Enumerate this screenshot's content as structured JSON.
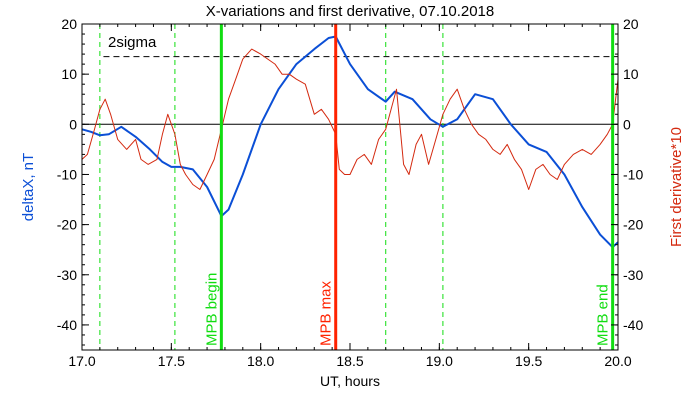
{
  "chart_data": {
    "type": "line",
    "title": "X-variations and first derivative, 07.10.2018",
    "xlabel": "UT, hours",
    "ylabel_left": "deltaX, nT",
    "ylabel_right": "First derivative*10",
    "xlim": [
      17.0,
      20.0
    ],
    "ylim": [
      -45,
      20
    ],
    "x_ticks": [
      "17.0",
      "17.5",
      "18.0",
      "18.5",
      "19.0",
      "19.5",
      "20.0"
    ],
    "y_ticks": [
      "20",
      "10",
      "0",
      "-10",
      "-20",
      "-30",
      "-40"
    ],
    "grid": false,
    "colors": {
      "deltaX": "#0b4fd6",
      "derivative": "#d42a10",
      "mpb": "#11dd11",
      "max": "#ff2200",
      "axes": "#000000"
    },
    "sigma": {
      "label": "2sigma",
      "value": 13.5
    },
    "zero_line": 0,
    "dashed_green_lines": [
      17.1,
      17.52,
      18.7,
      19.02
    ],
    "markers": [
      {
        "label": "MPB begin",
        "x": 17.78,
        "color": "#11dd11"
      },
      {
        "label": "MPB max",
        "x": 18.42,
        "color": "#ff2200"
      },
      {
        "label": "MPB end",
        "x": 19.97,
        "color": "#11dd11"
      }
    ],
    "series": [
      {
        "key": "deltaX",
        "x": [
          17.0,
          17.05,
          17.1,
          17.15,
          17.22,
          17.3,
          17.38,
          17.45,
          17.5,
          17.55,
          17.62,
          17.7,
          17.78,
          17.82,
          17.9,
          18.0,
          18.1,
          18.2,
          18.3,
          18.38,
          18.42,
          18.5,
          18.6,
          18.7,
          18.75,
          18.85,
          18.95,
          19.02,
          19.1,
          19.15,
          19.2,
          19.3,
          19.4,
          19.5,
          19.6,
          19.7,
          19.8,
          19.9,
          19.97,
          20.0
        ],
        "values": [
          -1.0,
          -1.5,
          -2.2,
          -2.0,
          -0.5,
          -2.5,
          -5.0,
          -7.5,
          -8.5,
          -8.5,
          -9.0,
          -12.5,
          -18.3,
          -17.0,
          -10.0,
          0.0,
          7.0,
          12.0,
          15.0,
          17.2,
          17.5,
          12.0,
          7.0,
          4.5,
          6.5,
          5.0,
          1.0,
          -0.5,
          1.0,
          3.5,
          6.0,
          5.0,
          0.0,
          -4.0,
          -5.5,
          -10.0,
          -16.5,
          -22.0,
          -24.5,
          -23.5
        ]
      },
      {
        "key": "derivative",
        "x": [
          17.0,
          17.03,
          17.07,
          17.1,
          17.13,
          17.16,
          17.2,
          17.25,
          17.3,
          17.33,
          17.37,
          17.42,
          17.45,
          17.48,
          17.52,
          17.55,
          17.58,
          17.62,
          17.66,
          17.7,
          17.74,
          17.78,
          17.82,
          17.86,
          17.9,
          17.95,
          18.0,
          18.04,
          18.08,
          18.12,
          18.16,
          18.2,
          18.25,
          18.3,
          18.34,
          18.38,
          18.42,
          18.44,
          18.47,
          18.5,
          18.54,
          18.58,
          18.62,
          18.66,
          18.7,
          18.73,
          18.76,
          18.8,
          18.83,
          18.87,
          18.9,
          18.94,
          18.98,
          19.02,
          19.06,
          19.1,
          19.14,
          19.18,
          19.22,
          19.26,
          19.3,
          19.34,
          19.38,
          19.42,
          19.46,
          19.5,
          19.54,
          19.58,
          19.62,
          19.66,
          19.7,
          19.75,
          19.8,
          19.85,
          19.9,
          19.94,
          19.97,
          20.0
        ],
        "values": [
          -7.0,
          -6.0,
          -1.0,
          3.0,
          5.0,
          2.0,
          -3.0,
          -5.0,
          -3.0,
          -7.0,
          -8.0,
          -7.0,
          -2.0,
          2.0,
          -2.0,
          -8.0,
          -10.0,
          -12.0,
          -13.0,
          -10.0,
          -7.0,
          -1.0,
          5.0,
          9.0,
          13.0,
          15.0,
          14.0,
          13.0,
          12.0,
          10.0,
          10.0,
          9.0,
          8.0,
          2.0,
          3.0,
          1.0,
          -2.0,
          -9.0,
          -10.0,
          -10.0,
          -7.0,
          -6.0,
          -8.0,
          -3.0,
          -1.0,
          3.0,
          7.0,
          -8.0,
          -10.0,
          -4.0,
          -2.0,
          -8.0,
          -3.0,
          2.0,
          5.0,
          7.0,
          3.0,
          0.0,
          -2.0,
          -3.0,
          -5.0,
          -6.0,
          -4.0,
          -7.0,
          -9.0,
          -13.0,
          -9.0,
          -8.0,
          -10.0,
          -11.0,
          -8.0,
          -6.0,
          -5.0,
          -6.0,
          -4.0,
          -2.0,
          0.0,
          9.0
        ]
      }
    ]
  }
}
